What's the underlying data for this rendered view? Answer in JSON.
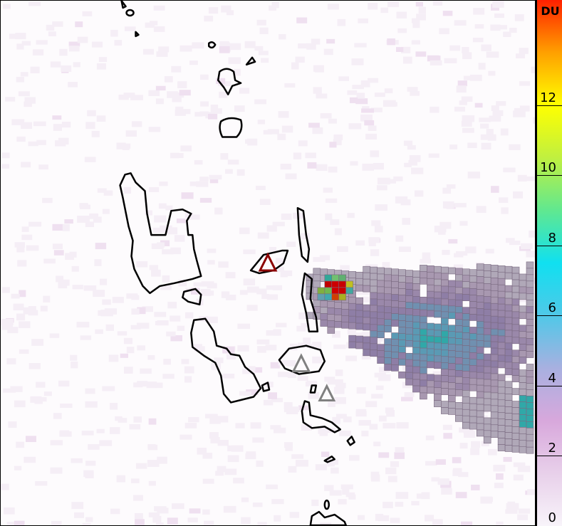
{
  "colorbar": {
    "unit": "DU",
    "min": 0,
    "max": 15,
    "ticks": [
      "0",
      "2",
      "4",
      "6",
      "8",
      "10",
      "12"
    ],
    "colors": [
      "#f8f4fa",
      "#e8d0ea",
      "#d8a8dc",
      "#a8b0e0",
      "#50c8e8",
      "#10e0f0",
      "#60e890",
      "#c0f040",
      "#ffff00",
      "#ffa000",
      "#ff2000"
    ]
  },
  "volcanoes": [
    {
      "icon": "triangle-icon",
      "color": "#8b0000",
      "status": "active"
    },
    {
      "icon": "triangle-icon",
      "color": "#808080",
      "status": "inactive"
    },
    {
      "icon": "triangle-icon",
      "color": "#808080",
      "status": "inactive"
    }
  ]
}
